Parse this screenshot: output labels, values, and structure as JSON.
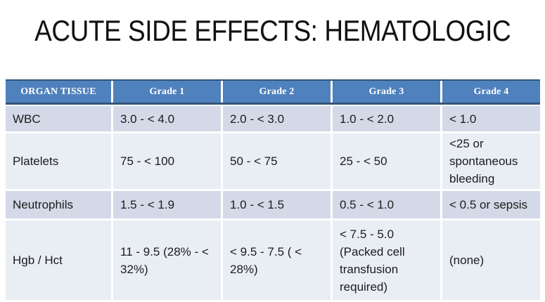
{
  "slide": {
    "title": "ACUTE SIDE EFFECTS: HEMATOLOGIC"
  },
  "table": {
    "headers": [
      "ORGAN TISSUE",
      "Grade 1",
      "Grade 2",
      "Grade 3",
      "Grade 4"
    ],
    "rows": [
      {
        "cells": [
          "WBC",
          "3.0 - < 4.0",
          "2.0 - < 3.0",
          "1.0 - < 2.0",
          "< 1.0"
        ]
      },
      {
        "cells": [
          "Platelets",
          "75 - < 100",
          "50 - < 75",
          "25 - < 50",
          "<25 or spontaneous bleeding"
        ]
      },
      {
        "cells": [
          "Neutrophils",
          "1.5 - < 1.9",
          "1.0 - < 1.5",
          "0.5 - < 1.0",
          "< 0.5 or sepsis"
        ]
      },
      {
        "cells": [
          "Hgb / Hct",
          "11 - 9.5 (28% - < 32%)",
          "< 9.5 - 7.5 ( < 28%)",
          "< 7.5 - 5.0 (Packed cell transfusion required)",
          "(none)"
        ]
      }
    ]
  },
  "colors": {
    "header-blue": "#4F81BD",
    "border-navy": "#34547C",
    "band-dark": "#D3D9E7",
    "band-light": "#E9EDF4"
  }
}
